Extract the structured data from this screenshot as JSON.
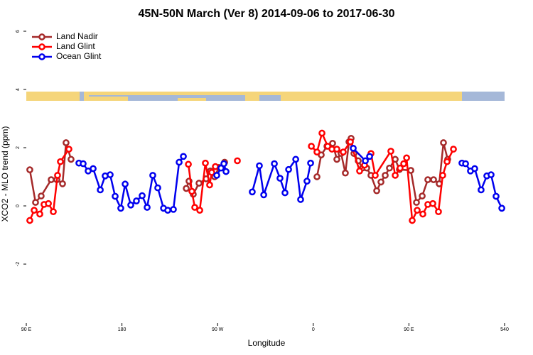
{
  "chart_data": {
    "type": "line",
    "title": "45N-50N March (Ver 8)   2014-09-06 to 2017-06-30",
    "xlabel": "Longitude",
    "ylabel": "XCO2 - MLO trend (ppm)",
    "xlim": [
      90,
      540
    ],
    "ylim": [
      -4.1,
      6.3
    ],
    "xticks": [
      {
        "value": 90,
        "label": "90 E"
      },
      180,
      {
        "value": 270,
        "label": "90 W"
      },
      {
        "value": 360,
        "label": "0"
      },
      {
        "value": 450,
        "label": "90 E"
      },
      540
    ],
    "yticks": [
      -2,
      0,
      2,
      4,
      6
    ],
    "legend": "top-left",
    "series": [
      {
        "name": "Land Nadir",
        "color": "#a52a2a",
        "x": [
          93.3,
          98.7,
          104.0,
          113.4,
          118.8,
          124.1,
          127.4,
          132.1,
          null,
          240.5,
          243.1,
          247.1,
          252.5,
          259.2,
          263.2,
          267.2,
          271.2,
          276.6,
          null,
          363.5,
          367.5,
          372.9,
          378.2,
          382.2,
          386.2,
          390.2,
          393.6,
          395.6,
          398.3,
          402.3,
          406.3,
          410.3,
          414.3,
          419.7,
          423.7,
          427.7,
          431.7,
          437.1,
          441.1,
          451.8,
          457.1,
          462.5,
          467.8,
          473.2,
          478.5,
          482.5,
          486.5
        ],
        "values": [
          1.24,
          0.12,
          0.34,
          0.9,
          0.9,
          0.76,
          2.17,
          1.6,
          null,
          0.6,
          0.85,
          0.4,
          0.78,
          0.93,
          1.2,
          1.0,
          1.32,
          1.5,
          null,
          1.0,
          1.75,
          2.05,
          2.15,
          1.6,
          1.8,
          1.13,
          2.2,
          2.32,
          1.8,
          1.55,
          1.3,
          1.3,
          1.05,
          0.52,
          0.82,
          1.05,
          1.3,
          1.6,
          1.25,
          1.22,
          0.12,
          0.34,
          0.9,
          0.9,
          0.76,
          2.17,
          1.6
        ]
      },
      {
        "name": "Land Glint",
        "color": "#ff0000",
        "x": [
          93.3,
          97.4,
          102.7,
          106.7,
          110.8,
          115.4,
          119.4,
          122.1,
          130.1,
          null,
          242.5,
          245.8,
          248.5,
          253.2,
          258.5,
          262.5,
          264.5,
          267.9,
          null,
          288.6,
          null,
          358.2,
          363.5,
          368.2,
          373.6,
          377.6,
          382.2,
          388.2,
          394.9,
          403.6,
          408.3,
          414.3,
          418.3,
          433.0,
          437.1,
          441.7,
          445.1,
          447.8,
          453.1,
          457.8,
          463.1,
          467.8,
          472.5,
          477.8,
          481.8,
          485.9,
          491.9
        ],
        "values": [
          -0.5,
          -0.15,
          -0.28,
          0.05,
          0.08,
          -0.2,
          1.05,
          1.52,
          1.95,
          null,
          1.43,
          0.5,
          -0.05,
          -0.15,
          1.47,
          0.72,
          1.15,
          1.35,
          null,
          1.55,
          null,
          2.05,
          1.85,
          2.5,
          2.05,
          1.95,
          1.95,
          1.85,
          2.2,
          1.2,
          1.4,
          1.8,
          1.05,
          1.88,
          1.05,
          1.3,
          1.45,
          1.65,
          -0.5,
          -0.15,
          -0.28,
          0.05,
          0.08,
          -0.2,
          1.05,
          1.52,
          1.95
        ]
      },
      {
        "name": "Ocean Glint",
        "color": "#0000ee",
        "x": [
          139.5,
          143.5,
          148.2,
          152.9,
          159.6,
          164.2,
          168.9,
          173.6,
          178.9,
          183.0,
          188.3,
          193.6,
          199.0,
          203.7,
          209.0,
          213.7,
          219.1,
          223.1,
          228.4,
          233.8,
          237.8,
          null,
          269.2,
          273.2,
          275.9,
          277.9,
          null,
          302.6,
          309.3,
          313.4,
          323.4,
          328.7,
          333.4,
          336.8,
          343.5,
          348.1,
          354.1,
          357.5,
          null,
          397.6,
          409.0,
          413.0,
          null,
          499.9,
          503.3,
          507.9,
          511.9,
          517.9,
          523.3,
          527.3,
          532.0,
          537.4
        ],
        "values": [
          1.47,
          1.45,
          1.2,
          1.28,
          0.55,
          1.03,
          1.07,
          0.33,
          -0.08,
          0.75,
          0.03,
          0.17,
          0.35,
          -0.05,
          1.05,
          0.62,
          -0.08,
          -0.15,
          -0.12,
          1.5,
          1.7,
          null,
          1.05,
          1.3,
          1.45,
          1.18,
          null,
          0.48,
          1.38,
          0.38,
          1.45,
          0.95,
          0.45,
          1.25,
          1.6,
          0.22,
          0.85,
          1.47,
          null,
          1.98,
          1.55,
          1.7,
          null,
          1.47,
          1.45,
          1.2,
          1.28,
          0.55,
          1.03,
          1.07,
          0.33,
          -0.08
        ]
      }
    ]
  }
}
